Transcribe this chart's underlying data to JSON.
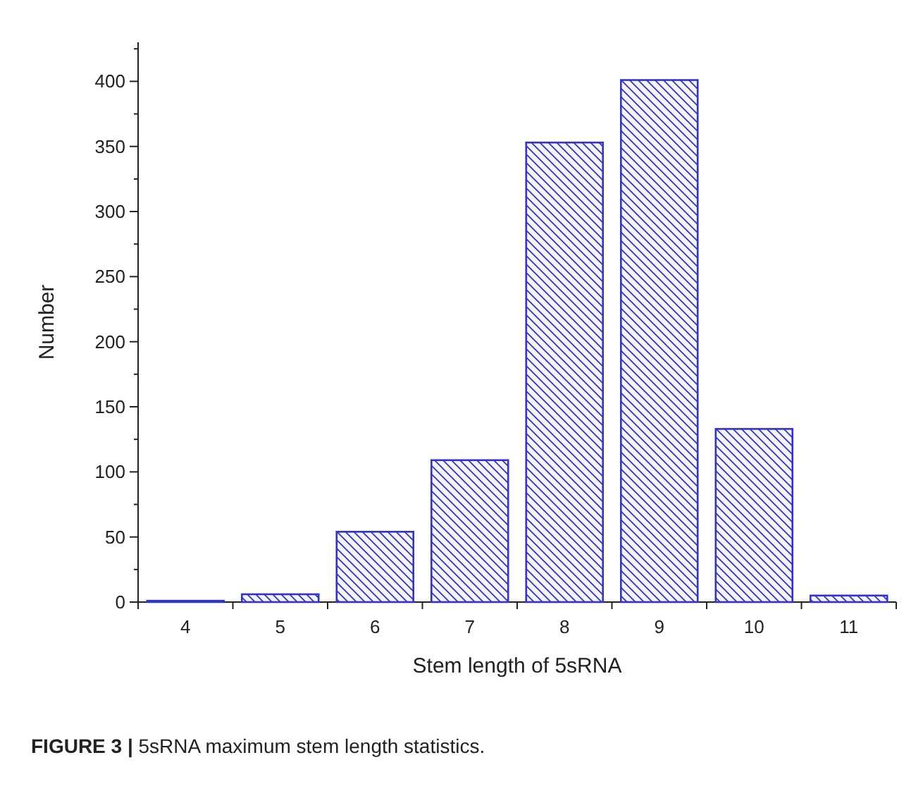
{
  "chart_data": {
    "type": "bar",
    "xlabel": "Stem length of 5sRNA",
    "ylabel": "Number",
    "categories": [
      "4",
      "5",
      "6",
      "7",
      "8",
      "9",
      "10",
      "11"
    ],
    "values": [
      1,
      6,
      54,
      109,
      353,
      401,
      133,
      5
    ],
    "color": "#3333cc",
    "ylim": [
      0,
      430
    ],
    "yticks": [
      0,
      {
        "value": 25,
        "label": null
      },
      50,
      {
        "value": 75,
        "label": null
      },
      100,
      {
        "value": 125,
        "label": null
      },
      150,
      {
        "value": 175,
        "label": null
      },
      200,
      {
        "value": 225,
        "label": null
      },
      250,
      {
        "value": 275,
        "label": null
      },
      300,
      {
        "value": 325,
        "label": null
      },
      350,
      {
        "value": 375,
        "label": null
      },
      400,
      {
        "value": 425,
        "label": null
      }
    ],
    "annotations": [
      "FIGURE 3 | 5sRNA maximum stem length statistics."
    ]
  }
}
